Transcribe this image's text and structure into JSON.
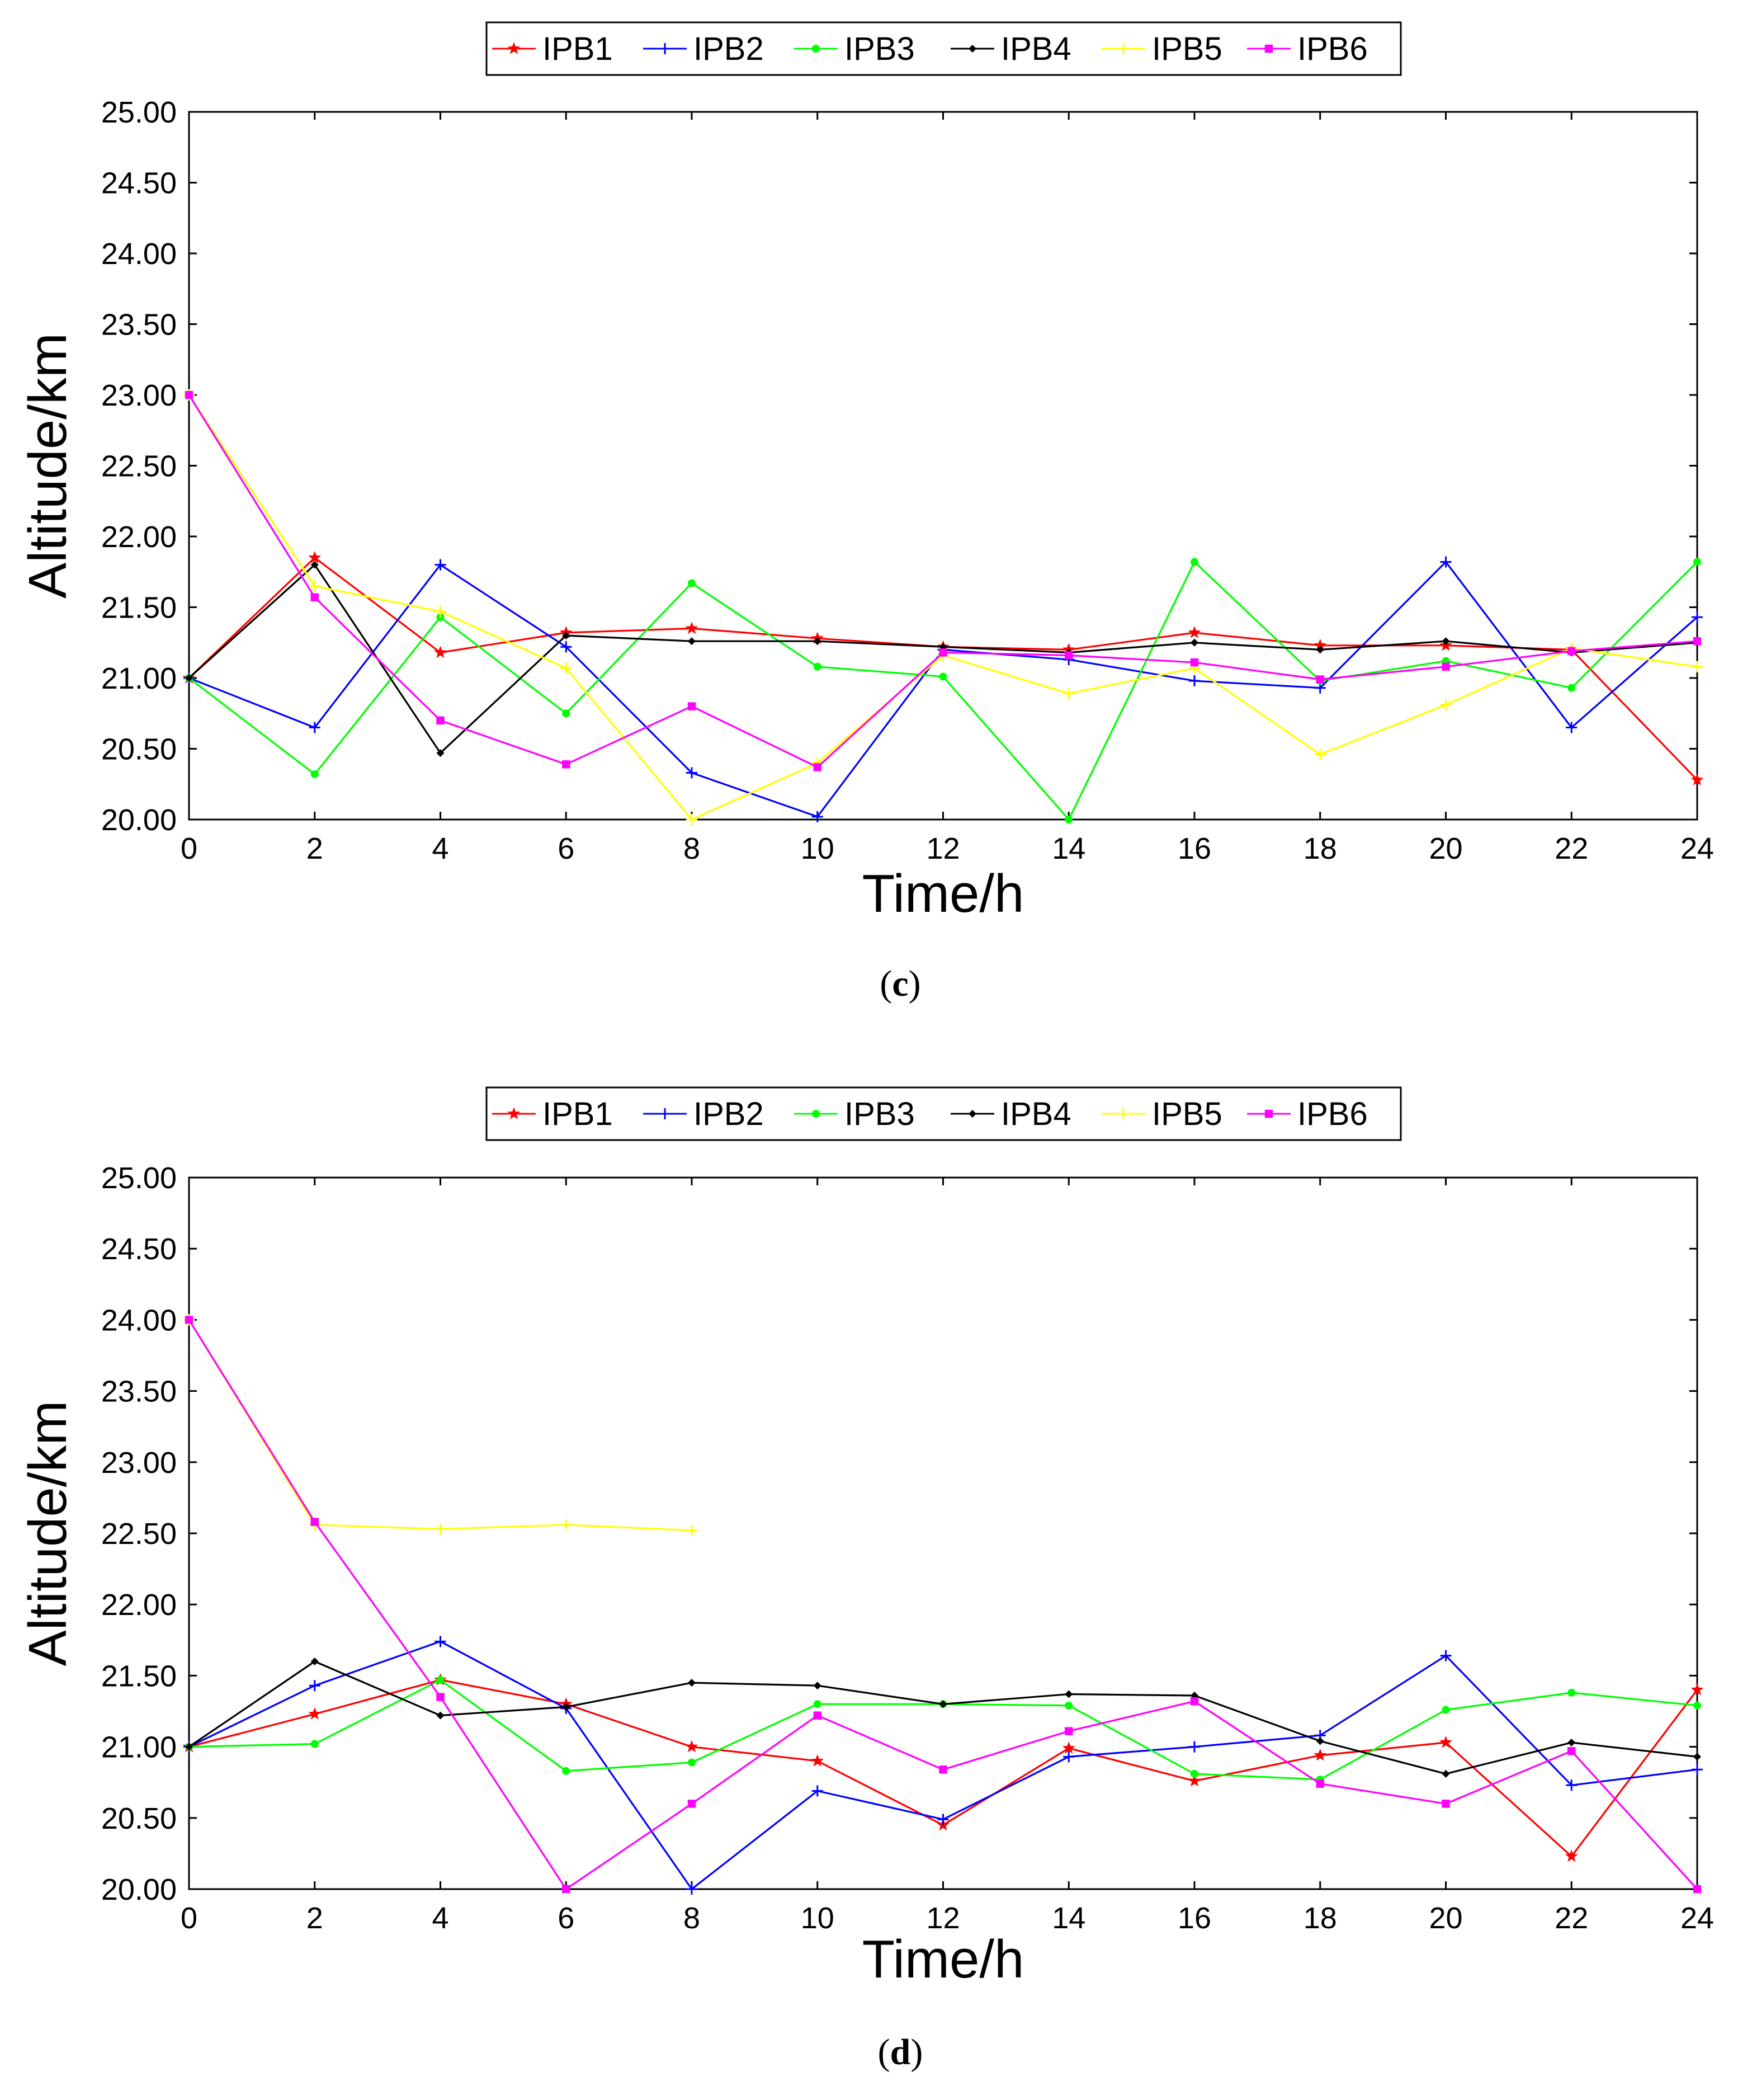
{
  "chart_data": [
    {
      "type": "line",
      "caption_label": "c",
      "caption_open": "(",
      "caption_close": ")",
      "title": "",
      "xlabel": "Time/h",
      "ylabel": "Altitude/km",
      "xlim": [
        0,
        24
      ],
      "ylim": [
        20,
        25
      ],
      "legend_position": "top-center",
      "x_ticks": [
        "0",
        "2",
        "4",
        "6",
        "8",
        "10",
        "12",
        "14",
        "16",
        "18",
        "20",
        "22",
        "24"
      ],
      "y_ticks": [
        "20.00",
        "20.50",
        "21.00",
        "21.50",
        "22.00",
        "22.50",
        "23.00",
        "23.50",
        "24.00",
        "24.50",
        "25.00"
      ],
      "x": [
        0,
        2,
        4,
        6,
        8,
        10,
        12,
        14,
        16,
        18,
        20,
        22,
        24
      ],
      "series": [
        {
          "name": "IPB1",
          "color": "#ff0000",
          "marker": "star",
          "values": [
            21.0,
            21.85,
            21.18,
            21.32,
            21.35,
            21.28,
            21.22,
            21.2,
            21.32,
            21.23,
            21.23,
            21.2,
            20.28
          ]
        },
        {
          "name": "IPB2",
          "color": "#0000ff",
          "marker": "plus",
          "values": [
            21.0,
            20.65,
            21.8,
            21.22,
            20.33,
            20.02,
            21.2,
            21.13,
            20.98,
            20.93,
            21.82,
            20.65,
            21.43
          ]
        },
        {
          "name": "IPB3",
          "color": "#00ff00",
          "marker": "dot",
          "values": [
            21.0,
            20.32,
            21.43,
            20.75,
            21.67,
            21.08,
            21.01,
            20.0,
            21.82,
            20.98,
            21.12,
            20.93,
            21.82
          ]
        },
        {
          "name": "IPB4",
          "color": "#000000",
          "marker": "diamond",
          "values": [
            21.0,
            21.8,
            20.47,
            21.3,
            21.26,
            21.26,
            21.22,
            21.18,
            21.25,
            21.2,
            21.26,
            21.18,
            21.25
          ]
        },
        {
          "name": "IPB5",
          "color": "#ffff00",
          "marker": "plus",
          "values": [
            23.0,
            21.65,
            21.47,
            21.07,
            20.0,
            20.4,
            21.16,
            20.89,
            21.07,
            20.46,
            20.81,
            21.21,
            21.08
          ]
        },
        {
          "name": "IPB6",
          "color": "#ff00ff",
          "marker": "square",
          "values": [
            23.0,
            21.57,
            20.7,
            20.39,
            20.8,
            20.37,
            21.18,
            21.16,
            21.11,
            20.99,
            21.08,
            21.19,
            21.26
          ]
        }
      ]
    },
    {
      "type": "line",
      "caption_label": "d",
      "caption_open": "(",
      "caption_close": ")",
      "title": "",
      "xlabel": "Time/h",
      "ylabel": "Altitude/km",
      "xlim": [
        0,
        24
      ],
      "ylim": [
        20,
        25
      ],
      "legend_position": "top-center",
      "x_ticks": [
        "0",
        "2",
        "4",
        "6",
        "8",
        "10",
        "12",
        "14",
        "16",
        "18",
        "20",
        "22",
        "24"
      ],
      "y_ticks": [
        "20.00",
        "20.50",
        "21.00",
        "21.50",
        "22.00",
        "22.50",
        "23.00",
        "23.50",
        "24.00",
        "24.50",
        "25.00"
      ],
      "x": [
        0,
        2,
        4,
        6,
        8,
        10,
        12,
        14,
        16,
        18,
        20,
        22,
        24
      ],
      "series": [
        {
          "name": "IPB1",
          "color": "#ff0000",
          "marker": "star",
          "values": [
            21.0,
            21.23,
            21.47,
            21.3,
            21.0,
            20.9,
            20.45,
            20.99,
            20.76,
            20.94,
            21.03,
            20.23,
            21.4
          ]
        },
        {
          "name": "IPB2",
          "color": "#0000ff",
          "marker": "plus",
          "values": [
            21.0,
            21.43,
            21.74,
            21.27,
            20.0,
            20.69,
            20.49,
            20.93,
            21.0,
            21.08,
            21.64,
            20.73,
            20.84
          ]
        },
        {
          "name": "IPB3",
          "color": "#00ff00",
          "marker": "dot",
          "values": [
            21.0,
            21.02,
            21.47,
            20.83,
            20.89,
            21.3,
            21.3,
            21.29,
            20.81,
            20.77,
            21.26,
            21.38,
            21.29
          ]
        },
        {
          "name": "IPB4",
          "color": "#000000",
          "marker": "diamond",
          "values": [
            21.0,
            21.6,
            21.22,
            21.28,
            21.45,
            21.43,
            21.3,
            21.37,
            21.36,
            21.04,
            20.81,
            21.03,
            20.93
          ]
        },
        {
          "name": "IPB5",
          "color": "#ffff00",
          "marker": "plus",
          "values": [
            24.0,
            22.56,
            22.53,
            22.56,
            22.52,
            null,
            null,
            null,
            null,
            null,
            null,
            null,
            null
          ]
        },
        {
          "name": "IPB6",
          "color": "#ff00ff",
          "marker": "square",
          "values": [
            24.0,
            22.58,
            21.35,
            20.0,
            20.6,
            21.22,
            20.84,
            21.11,
            21.32,
            20.74,
            20.6,
            20.97,
            20.0
          ]
        }
      ]
    }
  ]
}
